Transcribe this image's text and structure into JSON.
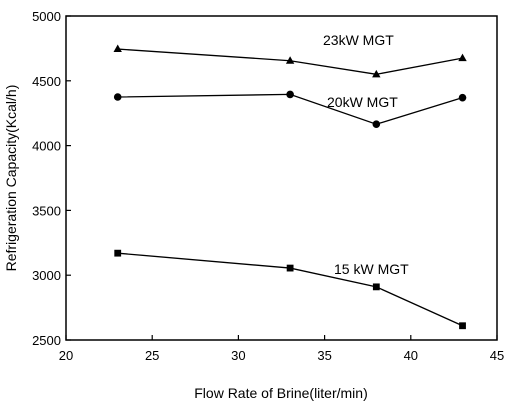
{
  "chart_data": {
    "type": "line",
    "xlabel": "Flow Rate of Brine(liter/min)",
    "ylabel": "Refrigeration Capacity(Kcal/h)",
    "xlim": [
      20,
      45
    ],
    "ylim": [
      2500,
      5000
    ],
    "x_ticks": [
      20,
      25,
      30,
      35,
      40,
      45
    ],
    "x_tick_labels": [
      "20",
      "25",
      "30",
      "35",
      "40",
      "45"
    ],
    "y_ticks": [
      2500,
      3000,
      3500,
      4000,
      4500,
      5000
    ],
    "y_tick_labels": [
      "2500",
      "3000",
      "3500",
      "4000",
      "4500",
      "5000"
    ],
    "grid": false,
    "series": [
      {
        "name": "23kW MGT",
        "marker": "triangle",
        "x": [
          23,
          33,
          38,
          43
        ],
        "values": [
          4745,
          4655,
          4550,
          4675
        ]
      },
      {
        "name": "20kW MGT",
        "marker": "circle",
        "x": [
          23,
          33,
          38,
          43
        ],
        "values": [
          4375,
          4395,
          4165,
          4370
        ]
      },
      {
        "name": "15 kW MGT",
        "marker": "square",
        "x": [
          23,
          33,
          38,
          43
        ],
        "values": [
          3170,
          3055,
          2910,
          2610
        ]
      }
    ],
    "colors": {
      "line": "#000000",
      "marker": "#000000"
    }
  }
}
